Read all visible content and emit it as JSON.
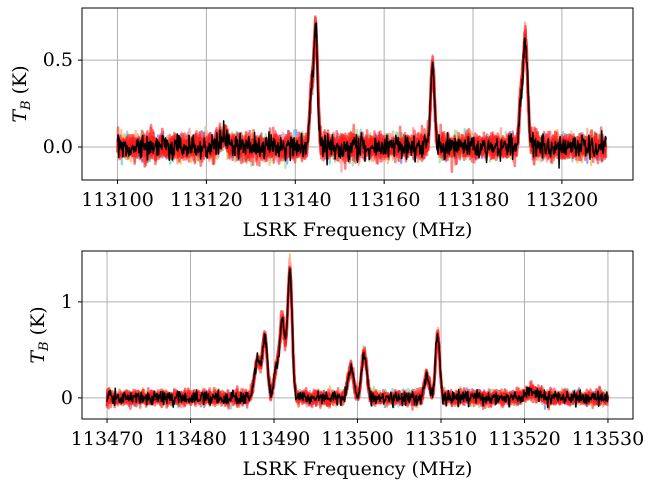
{
  "chart_data": [
    {
      "type": "line",
      "xlabel": "LSRK Frequency (MHz)",
      "ylabel_main": "T",
      "ylabel_sub": "B",
      "ylabel_unit": " (K)",
      "xlim": [
        113092,
        113216
      ],
      "ylim": [
        -0.19,
        0.8
      ],
      "x_ticks": [
        113100,
        113120,
        113140,
        113160,
        113180,
        113200
      ],
      "x_tick_labels": [
        "113100",
        "113120",
        "113140",
        "113160",
        "113180",
        "113200"
      ],
      "y_ticks": [
        0.0,
        0.5
      ],
      "y_tick_labels": [
        "0.0",
        "0.5"
      ],
      "grid": true,
      "data_range": [
        113100,
        113210
      ],
      "noise_sigma": 0.035,
      "lines": [
        {
          "center": 113144.6,
          "amplitude": 0.66,
          "width": 0.45
        },
        {
          "center": 113143.6,
          "amplitude": 0.3,
          "width": 0.4
        },
        {
          "center": 113170.9,
          "amplitude": 0.46,
          "width": 0.45
        },
        {
          "center": 113191.8,
          "amplitude": 0.6,
          "width": 0.5
        },
        {
          "center": 113190.8,
          "amplitude": 0.25,
          "width": 0.4
        },
        {
          "center": 113124.0,
          "amplitude": 0.05,
          "width": 0.8
        }
      ],
      "series": [
        {
          "role": "samples",
          "colors": [
            "#8a8aff",
            "#7fd4d4",
            "#a9e29a",
            "#f2c26b",
            "#ffa3a3"
          ],
          "count": 5
        },
        {
          "role": "posterior-draws",
          "color": "#ff1a1a",
          "count": 6
        },
        {
          "role": "data",
          "color": "#000000"
        }
      ]
    },
    {
      "type": "line",
      "xlabel": "LSRK Frequency (MHz)",
      "ylabel_main": "T",
      "ylabel_sub": "B",
      "ylabel_unit": " (K)",
      "xlim": [
        113467,
        113533
      ],
      "ylim": [
        -0.22,
        1.53
      ],
      "x_ticks": [
        113470,
        113480,
        113490,
        113500,
        113510,
        113520,
        113530
      ],
      "x_tick_labels": [
        "113470",
        "113480",
        "113490",
        "113500",
        "113510",
        "113520",
        "113530"
      ],
      "y_ticks": [
        0,
        1
      ],
      "y_tick_labels": [
        "0",
        "1"
      ],
      "grid": true,
      "data_range": [
        113470,
        113530
      ],
      "noise_sigma": 0.035,
      "lines": [
        {
          "center": 113488.0,
          "amplitude": 0.38,
          "width": 0.35
        },
        {
          "center": 113488.9,
          "amplitude": 0.62,
          "width": 0.3
        },
        {
          "center": 113491.0,
          "amplitude": 0.8,
          "width": 0.3
        },
        {
          "center": 113491.9,
          "amplitude": 1.3,
          "width": 0.28
        },
        {
          "center": 113490.3,
          "amplitude": 0.3,
          "width": 0.3
        },
        {
          "center": 113499.2,
          "amplitude": 0.3,
          "width": 0.35
        },
        {
          "center": 113500.8,
          "amplitude": 0.48,
          "width": 0.3
        },
        {
          "center": 113508.3,
          "amplitude": 0.22,
          "width": 0.3
        },
        {
          "center": 113509.6,
          "amplitude": 0.65,
          "width": 0.25
        },
        {
          "center": 113520.8,
          "amplitude": 0.06,
          "width": 0.8
        }
      ],
      "series": [
        {
          "role": "samples",
          "colors": [
            "#8a8aff",
            "#7fd4d4",
            "#a9e29a",
            "#f2c26b",
            "#ffa3a3"
          ],
          "count": 5
        },
        {
          "role": "posterior-draws",
          "color": "#ff1a1a",
          "count": 6
        },
        {
          "role": "data",
          "color": "#000000"
        }
      ]
    }
  ]
}
